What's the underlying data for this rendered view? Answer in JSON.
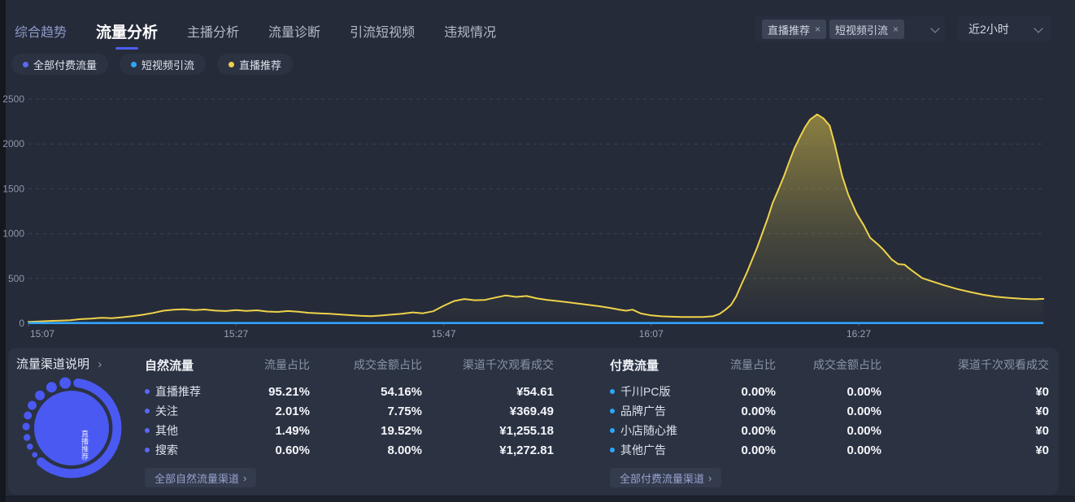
{
  "theme": {
    "accent": "#4d5ef2",
    "background": "#252b39",
    "card_background": "#2b3242",
    "series_yellow": "#efd24a",
    "series_cyan": "#2ca6f9",
    "series_indigo": "#5b68f5"
  },
  "nav": {
    "items": [
      {
        "label": "综合趋势",
        "state": "accent"
      },
      {
        "label": "流量分析",
        "state": "active"
      },
      {
        "label": "主播分析",
        "state": "normal"
      },
      {
        "label": "流量诊断",
        "state": "normal"
      },
      {
        "label": "引流短视频",
        "state": "normal"
      },
      {
        "label": "违规情况",
        "state": "normal"
      }
    ]
  },
  "filters": {
    "channel_select": {
      "tags": [
        {
          "label": "直播推荐",
          "remove": "×"
        },
        {
          "label": "短视频引流",
          "remove": "×"
        }
      ]
    },
    "time_select": {
      "value": "近2小时"
    }
  },
  "legend": {
    "items": [
      {
        "label": "全部付费流量",
        "color": "#5b68f5"
      },
      {
        "label": "短视频引流",
        "color": "#2ca6f9"
      },
      {
        "label": "直播推荐",
        "color": "#f0cf4b"
      }
    ]
  },
  "chart_data": {
    "type": "area",
    "title": "",
    "xlabel": "",
    "ylabel": "",
    "x_axis": {
      "tick_labels": [
        "15:07",
        "15:27",
        "15:47",
        "16:07",
        "16:27"
      ],
      "tick_interval_minutes": 20,
      "span_minutes": 98
    },
    "y_axis": {
      "tick_labels": [
        0,
        500,
        1000,
        1500,
        2000,
        2500
      ],
      "range": [
        0,
        2500
      ]
    },
    "grid": "dashed-horizontal",
    "legend_position": "top-left-chips",
    "series": [
      {
        "name": "直播推荐",
        "color": "#efd24a",
        "fill": "gradient-to-transparent",
        "points": [
          [
            0,
            15
          ],
          [
            1,
            20
          ],
          [
            2,
            26
          ],
          [
            3,
            30
          ],
          [
            4,
            34
          ],
          [
            5,
            46
          ],
          [
            6,
            52
          ],
          [
            7,
            62
          ],
          [
            8,
            57
          ],
          [
            9,
            67
          ],
          [
            10,
            80
          ],
          [
            11,
            95
          ],
          [
            12,
            115
          ],
          [
            13,
            140
          ],
          [
            14,
            152
          ],
          [
            15,
            157
          ],
          [
            16,
            147
          ],
          [
            17,
            154
          ],
          [
            18,
            141
          ],
          [
            19,
            137
          ],
          [
            20,
            147
          ],
          [
            21,
            139
          ],
          [
            22,
            145
          ],
          [
            23,
            131
          ],
          [
            24,
            127
          ],
          [
            25,
            137
          ],
          [
            26,
            129
          ],
          [
            27,
            117
          ],
          [
            28,
            111
          ],
          [
            29,
            107
          ],
          [
            30,
            99
          ],
          [
            31,
            91
          ],
          [
            32,
            83
          ],
          [
            33,
            79
          ],
          [
            34,
            87
          ],
          [
            35,
            97
          ],
          [
            36,
            107
          ],
          [
            37,
            121
          ],
          [
            38,
            111
          ],
          [
            39,
            134
          ],
          [
            40,
            195
          ],
          [
            41,
            248
          ],
          [
            42,
            271
          ],
          [
            43,
            257
          ],
          [
            44,
            261
          ],
          [
            45,
            287
          ],
          [
            46,
            311
          ],
          [
            47,
            294
          ],
          [
            48,
            304
          ],
          [
            49,
            277
          ],
          [
            50,
            261
          ],
          [
            51,
            248
          ],
          [
            52,
            235
          ],
          [
            53,
            220
          ],
          [
            54,
            205
          ],
          [
            55,
            190
          ],
          [
            56,
            172
          ],
          [
            57,
            150
          ],
          [
            57.6,
            140
          ],
          [
            58.2,
            152
          ],
          [
            59,
            110
          ],
          [
            60,
            88
          ],
          [
            61,
            78
          ],
          [
            62,
            73
          ],
          [
            63,
            71
          ],
          [
            64,
            70
          ],
          [
            65,
            71
          ],
          [
            66,
            80
          ],
          [
            66.6,
            105
          ],
          [
            67.2,
            155
          ],
          [
            67.7,
            205
          ],
          [
            68.2,
            300
          ],
          [
            68.7,
            435
          ],
          [
            69.2,
            560
          ],
          [
            69.7,
            700
          ],
          [
            70.2,
            840
          ],
          [
            70.7,
            1000
          ],
          [
            71.2,
            1160
          ],
          [
            71.7,
            1340
          ],
          [
            72.3,
            1500
          ],
          [
            72.8,
            1640
          ],
          [
            73.3,
            1800
          ],
          [
            73.8,
            1950
          ],
          [
            74.3,
            2070
          ],
          [
            74.8,
            2180
          ],
          [
            75.3,
            2270
          ],
          [
            76,
            2330
          ],
          [
            76.6,
            2285
          ],
          [
            77.2,
            2205
          ],
          [
            77.7,
            1995
          ],
          [
            78.4,
            1645
          ],
          [
            79,
            1435
          ],
          [
            79.8,
            1225
          ],
          [
            80.5,
            1090
          ],
          [
            81.1,
            955
          ],
          [
            81.9,
            875
          ],
          [
            82.4,
            818
          ],
          [
            83.2,
            710
          ],
          [
            83.8,
            660
          ],
          [
            84.4,
            655
          ],
          [
            85,
            600
          ],
          [
            86.1,
            505
          ],
          [
            87,
            470
          ],
          [
            88.2,
            425
          ],
          [
            89.5,
            382
          ],
          [
            90.8,
            348
          ],
          [
            92,
            318
          ],
          [
            93.2,
            296
          ],
          [
            94.5,
            283
          ],
          [
            95.8,
            273
          ],
          [
            97,
            268
          ],
          [
            97.8,
            273
          ]
        ]
      },
      {
        "name": "短视频引流",
        "color": "#2ca6f9",
        "fill": "none",
        "points": [
          [
            0,
            4
          ],
          [
            97.8,
            4
          ]
        ]
      },
      {
        "name": "全部付费流量",
        "color": "#5b68f5",
        "fill": "none",
        "points": [
          [
            0,
            0
          ],
          [
            97.8,
            0
          ]
        ]
      }
    ]
  },
  "channel_panel": {
    "title": "流量渠道说明",
    "title_arrow": "›",
    "donut": {
      "color": "#4a59f2",
      "inner_label": "直播推荐"
    },
    "tables": [
      {
        "title": "自然流量",
        "dot_color": "#5b68f5",
        "columns": [
          "流量占比",
          "成交金额占比",
          "渠道千次观看成交"
        ],
        "rows": [
          {
            "name": "直播推荐",
            "values": [
              "95.21%",
              "54.16%",
              "¥54.61"
            ]
          },
          {
            "name": "关注",
            "values": [
              "2.01%",
              "7.75%",
              "¥369.49"
            ]
          },
          {
            "name": "其他",
            "values": [
              "1.49%",
              "19.52%",
              "¥1,255.18"
            ]
          },
          {
            "name": "搜索",
            "values": [
              "0.60%",
              "8.00%",
              "¥1,272.81"
            ]
          }
        ],
        "footer_button": "全部自然流量渠道",
        "footer_arrow": "›"
      },
      {
        "title": "付费流量",
        "dot_color": "#2ca6f9",
        "columns": [
          "流量占比",
          "成交金额占比",
          "渠道千次观看成交"
        ],
        "rows": [
          {
            "name": "千川PC版",
            "values": [
              "0.00%",
              "0.00%",
              "¥0"
            ]
          },
          {
            "name": "品牌广告",
            "values": [
              "0.00%",
              "0.00%",
              "¥0"
            ]
          },
          {
            "name": "小店随心推",
            "values": [
              "0.00%",
              "0.00%",
              "¥0"
            ]
          },
          {
            "name": "其他广告",
            "values": [
              "0.00%",
              "0.00%",
              "¥0"
            ]
          }
        ],
        "footer_button": "全部付费流量渠道",
        "footer_arrow": "›"
      }
    ]
  }
}
